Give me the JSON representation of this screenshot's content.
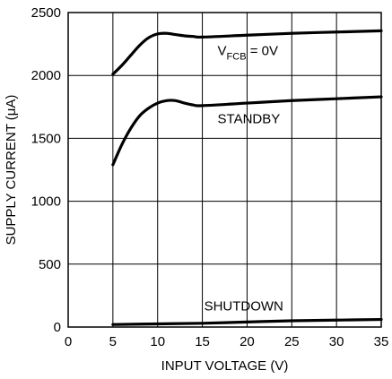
{
  "chart_data": {
    "type": "line",
    "xlabel": "INPUT VOLTAGE (V)",
    "ylabel": "SUPPLY CURRENT (μA)",
    "xlim": [
      0,
      35
    ],
    "ylim": [
      0,
      2500
    ],
    "xticks": [
      0,
      5,
      10,
      15,
      20,
      25,
      30,
      35
    ],
    "yticks": [
      0,
      500,
      1000,
      1500,
      2000,
      2500
    ],
    "grid": true,
    "series": [
      {
        "name": "V_FCB = 0V",
        "label_main": "V",
        "label_sub": "FCB",
        "label_rest": " = 0V",
        "x": [
          5,
          6,
          7,
          8,
          9,
          10,
          11,
          12,
          13,
          14,
          15,
          20,
          25,
          30,
          35
        ],
        "y": [
          2010,
          2080,
          2160,
          2240,
          2300,
          2330,
          2335,
          2325,
          2315,
          2310,
          2305,
          2320,
          2335,
          2345,
          2355
        ]
      },
      {
        "name": "STANDBY",
        "x": [
          5,
          6,
          7,
          8,
          9,
          10,
          11,
          12,
          13,
          14,
          15,
          20,
          25,
          30,
          35
        ],
        "y": [
          1290,
          1450,
          1580,
          1680,
          1740,
          1780,
          1800,
          1800,
          1780,
          1765,
          1760,
          1780,
          1800,
          1815,
          1830
        ]
      },
      {
        "name": "SHUTDOWN",
        "x": [
          5,
          10,
          15,
          20,
          25,
          30,
          35
        ],
        "y": [
          20,
          25,
          30,
          40,
          50,
          55,
          60
        ]
      }
    ]
  }
}
